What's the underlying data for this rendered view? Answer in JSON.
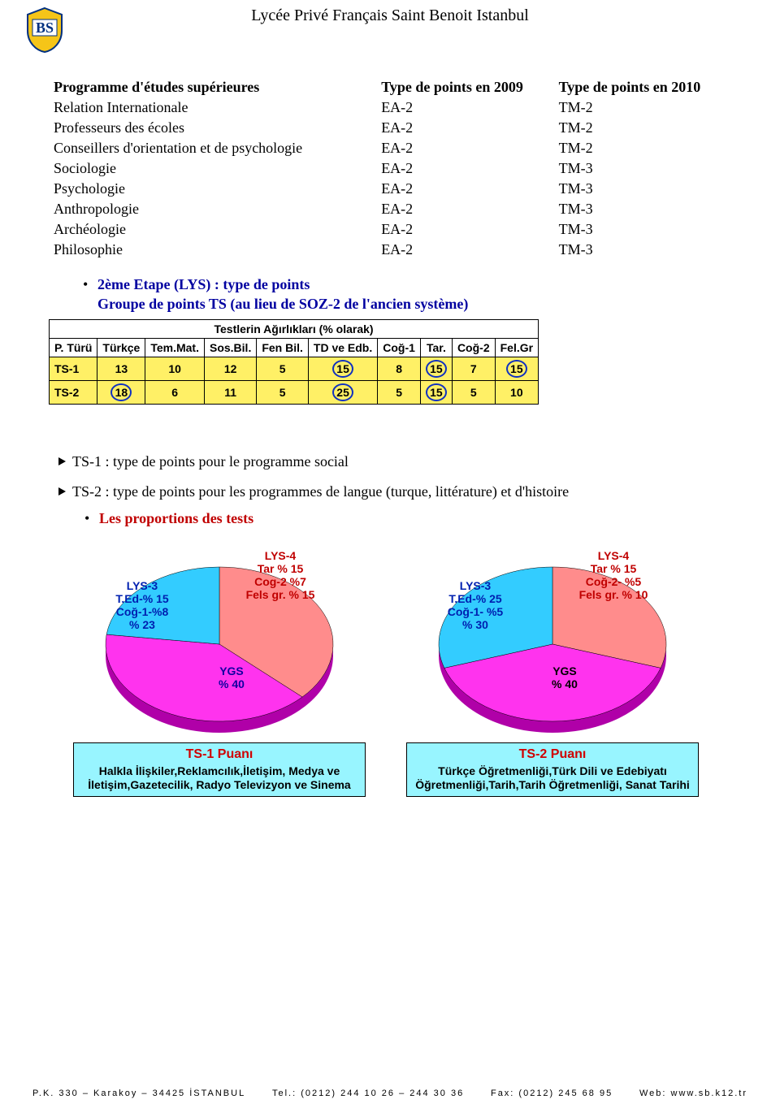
{
  "header": {
    "title": "Lycée Privé Français Saint Benoit Istanbul"
  },
  "main_table": {
    "headers": [
      "Programme d'études supérieures",
      "Type de points en 2009",
      "Type de points en 2010"
    ],
    "rows": [
      [
        "Relation Internationale",
        "EA-2",
        "TM-2"
      ],
      [
        "Professeurs des écoles",
        "EA-2",
        "TM-2"
      ],
      [
        "Conseillers d'orientation et de psychologie",
        "EA-2",
        "TM-2"
      ],
      [
        "Sociologie",
        "EA-2",
        "TM-3"
      ],
      [
        "Psychologie",
        "EA-2",
        "TM-3"
      ],
      [
        "Anthropologie",
        "EA-2",
        "TM-3"
      ],
      [
        "Archéologie",
        "EA-2",
        "TM-3"
      ],
      [
        "Philosophie",
        "EA-2",
        "TM-3"
      ]
    ]
  },
  "etape2": {
    "line1": "2ème Etape (LYS) : type de points",
    "line2": "Groupe de points TS (au lieu de SOZ-2 de l'ancien système)"
  },
  "weights_table": {
    "title": "Testlerin Ağırlıkları (% olarak)",
    "columns": [
      "P. Türü",
      "Türkçe",
      "Tem.Mat.",
      "Sos.Bil.",
      "Fen Bil.",
      "TD ve Edb.",
      "Coğ-1",
      "Tar.",
      "Coğ-2",
      "Fel.Gr"
    ],
    "rows": [
      {
        "label": "TS-1",
        "values": [
          "13",
          "10",
          "12",
          "5",
          "15",
          "8",
          "15",
          "7",
          "15"
        ],
        "circled": [
          false,
          false,
          false,
          false,
          true,
          false,
          true,
          false,
          true
        ]
      },
      {
        "label": "TS-2",
        "values": [
          "18",
          "6",
          "11",
          "5",
          "25",
          "5",
          "15",
          "5",
          "10"
        ],
        "circled": [
          true,
          false,
          false,
          false,
          true,
          false,
          true,
          false,
          false
        ]
      }
    ],
    "bg_color": "#fff066",
    "circle_color": "#1030c0"
  },
  "desc": {
    "ts1": "TS-1 : type de points pour le programme social",
    "ts2": "TS-2 : type de points pour les programmes de langue (turque, littérature) et d'histoire",
    "prop": "Les proportions des tests"
  },
  "pies": [
    {
      "slices": [
        {
          "label": "LYS-4",
          "sub": "Tar % 15\nCog-2 %7\nFels gr. % 15",
          "percent": 37,
          "color": "#ff8c8c",
          "text_color": "#c00000"
        },
        {
          "label": "YGS",
          "sub": "% 40",
          "percent": 40,
          "color": "#ff33ee",
          "text_color": "#1000a0"
        },
        {
          "label": "LYS-3",
          "sub": "T.Ed-% 15\nCoğ-1-%8\n% 23",
          "percent": 23,
          "color": "#33ccff",
          "text_color": "#0020b0"
        }
      ],
      "caption_title": "TS-1 Puanı",
      "caption_body": "Halkla İlişkiler,Reklamcılık,İletişim, Medya ve İletişim,Gazetecilik, Radyo Televizyon ve Sinema"
    },
    {
      "slices": [
        {
          "label": "LYS-4",
          "sub": "Tar % 15\nCoğ-2- %5\nFels gr. % 10",
          "percent": 30,
          "color": "#ff8c8c",
          "text_color": "#c00000"
        },
        {
          "label": "YGS",
          "sub": "% 40",
          "percent": 40,
          "color": "#ff33ee",
          "text_color": "#000000"
        },
        {
          "label": "LYS-3",
          "sub": "T.Ed-% 25\nCoğ-1- %5\n% 30",
          "percent": 30,
          "color": "#33ccff",
          "text_color": "#0020b0"
        }
      ],
      "caption_title": "TS-2 Puanı",
      "caption_body": "Türkçe Öğretmenliği,Türk Dili ve Edebiyatı Öğretmenliği,Tarih,Tarih Öğretmenliği, Sanat Tarihi"
    }
  ],
  "footer": {
    "left": "P.K. 330 – Karakoy – 34425 İSTANBUL",
    "mid": "Tel.: (0212) 244 10 26 – 244 30 36",
    "right1": "Fax: (0212) 245 68 95",
    "right2": "Web: www.sb.k12.tr"
  }
}
